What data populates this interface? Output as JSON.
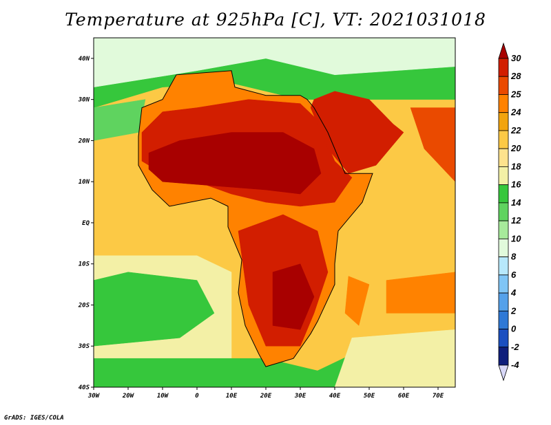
{
  "title": "Temperature at 925hPa [C], VT: 2021031018",
  "credit": "GrADS: IGES/COLA",
  "chart_data": {
    "type": "heatmap",
    "variable": "Temperature at 925hPa",
    "unit": "C",
    "valid_time": "2021031018",
    "xlim": [
      -30,
      75
    ],
    "ylim": [
      -40,
      45
    ],
    "x_ticks": [
      {
        "value": -30,
        "label": "30W"
      },
      {
        "value": -20,
        "label": "20W"
      },
      {
        "value": -10,
        "label": "10W"
      },
      {
        "value": 0,
        "label": "0"
      },
      {
        "value": 10,
        "label": "10E"
      },
      {
        "value": 20,
        "label": "20E"
      },
      {
        "value": 30,
        "label": "30E"
      },
      {
        "value": 40,
        "label": "40E"
      },
      {
        "value": 50,
        "label": "50E"
      },
      {
        "value": 60,
        "label": "60E"
      },
      {
        "value": 70,
        "label": "70E"
      }
    ],
    "y_ticks": [
      {
        "value": 40,
        "label": "40N"
      },
      {
        "value": 30,
        "label": "30N"
      },
      {
        "value": 20,
        "label": "20N"
      },
      {
        "value": 10,
        "label": "10N"
      },
      {
        "value": 0,
        "label": "EQ"
      },
      {
        "value": -10,
        "label": "10S"
      },
      {
        "value": -20,
        "label": "20S"
      },
      {
        "value": -30,
        "label": "30S"
      },
      {
        "value": -40,
        "label": "40S"
      }
    ],
    "colorbar": {
      "levels": [
        "30",
        "28",
        "25",
        "24",
        "22",
        "20",
        "18",
        "16",
        "14",
        "12",
        "10",
        "8",
        "6",
        "4",
        "2",
        "0",
        "-2",
        "-4"
      ],
      "colors": [
        "#a80000",
        "#d21e00",
        "#ea4a00",
        "#ff8200",
        "#f2a40e",
        "#fcc945",
        "#fde28d",
        "#f3f0a6",
        "#36c73c",
        "#5fd35f",
        "#a7ea9b",
        "#e1fadb",
        "#b7e8fb",
        "#80c5f5",
        "#55a1ea",
        "#2f79d6",
        "#1b4fc0",
        "#0f1e7c",
        "#0a0a60"
      ]
    },
    "grid": false
  }
}
